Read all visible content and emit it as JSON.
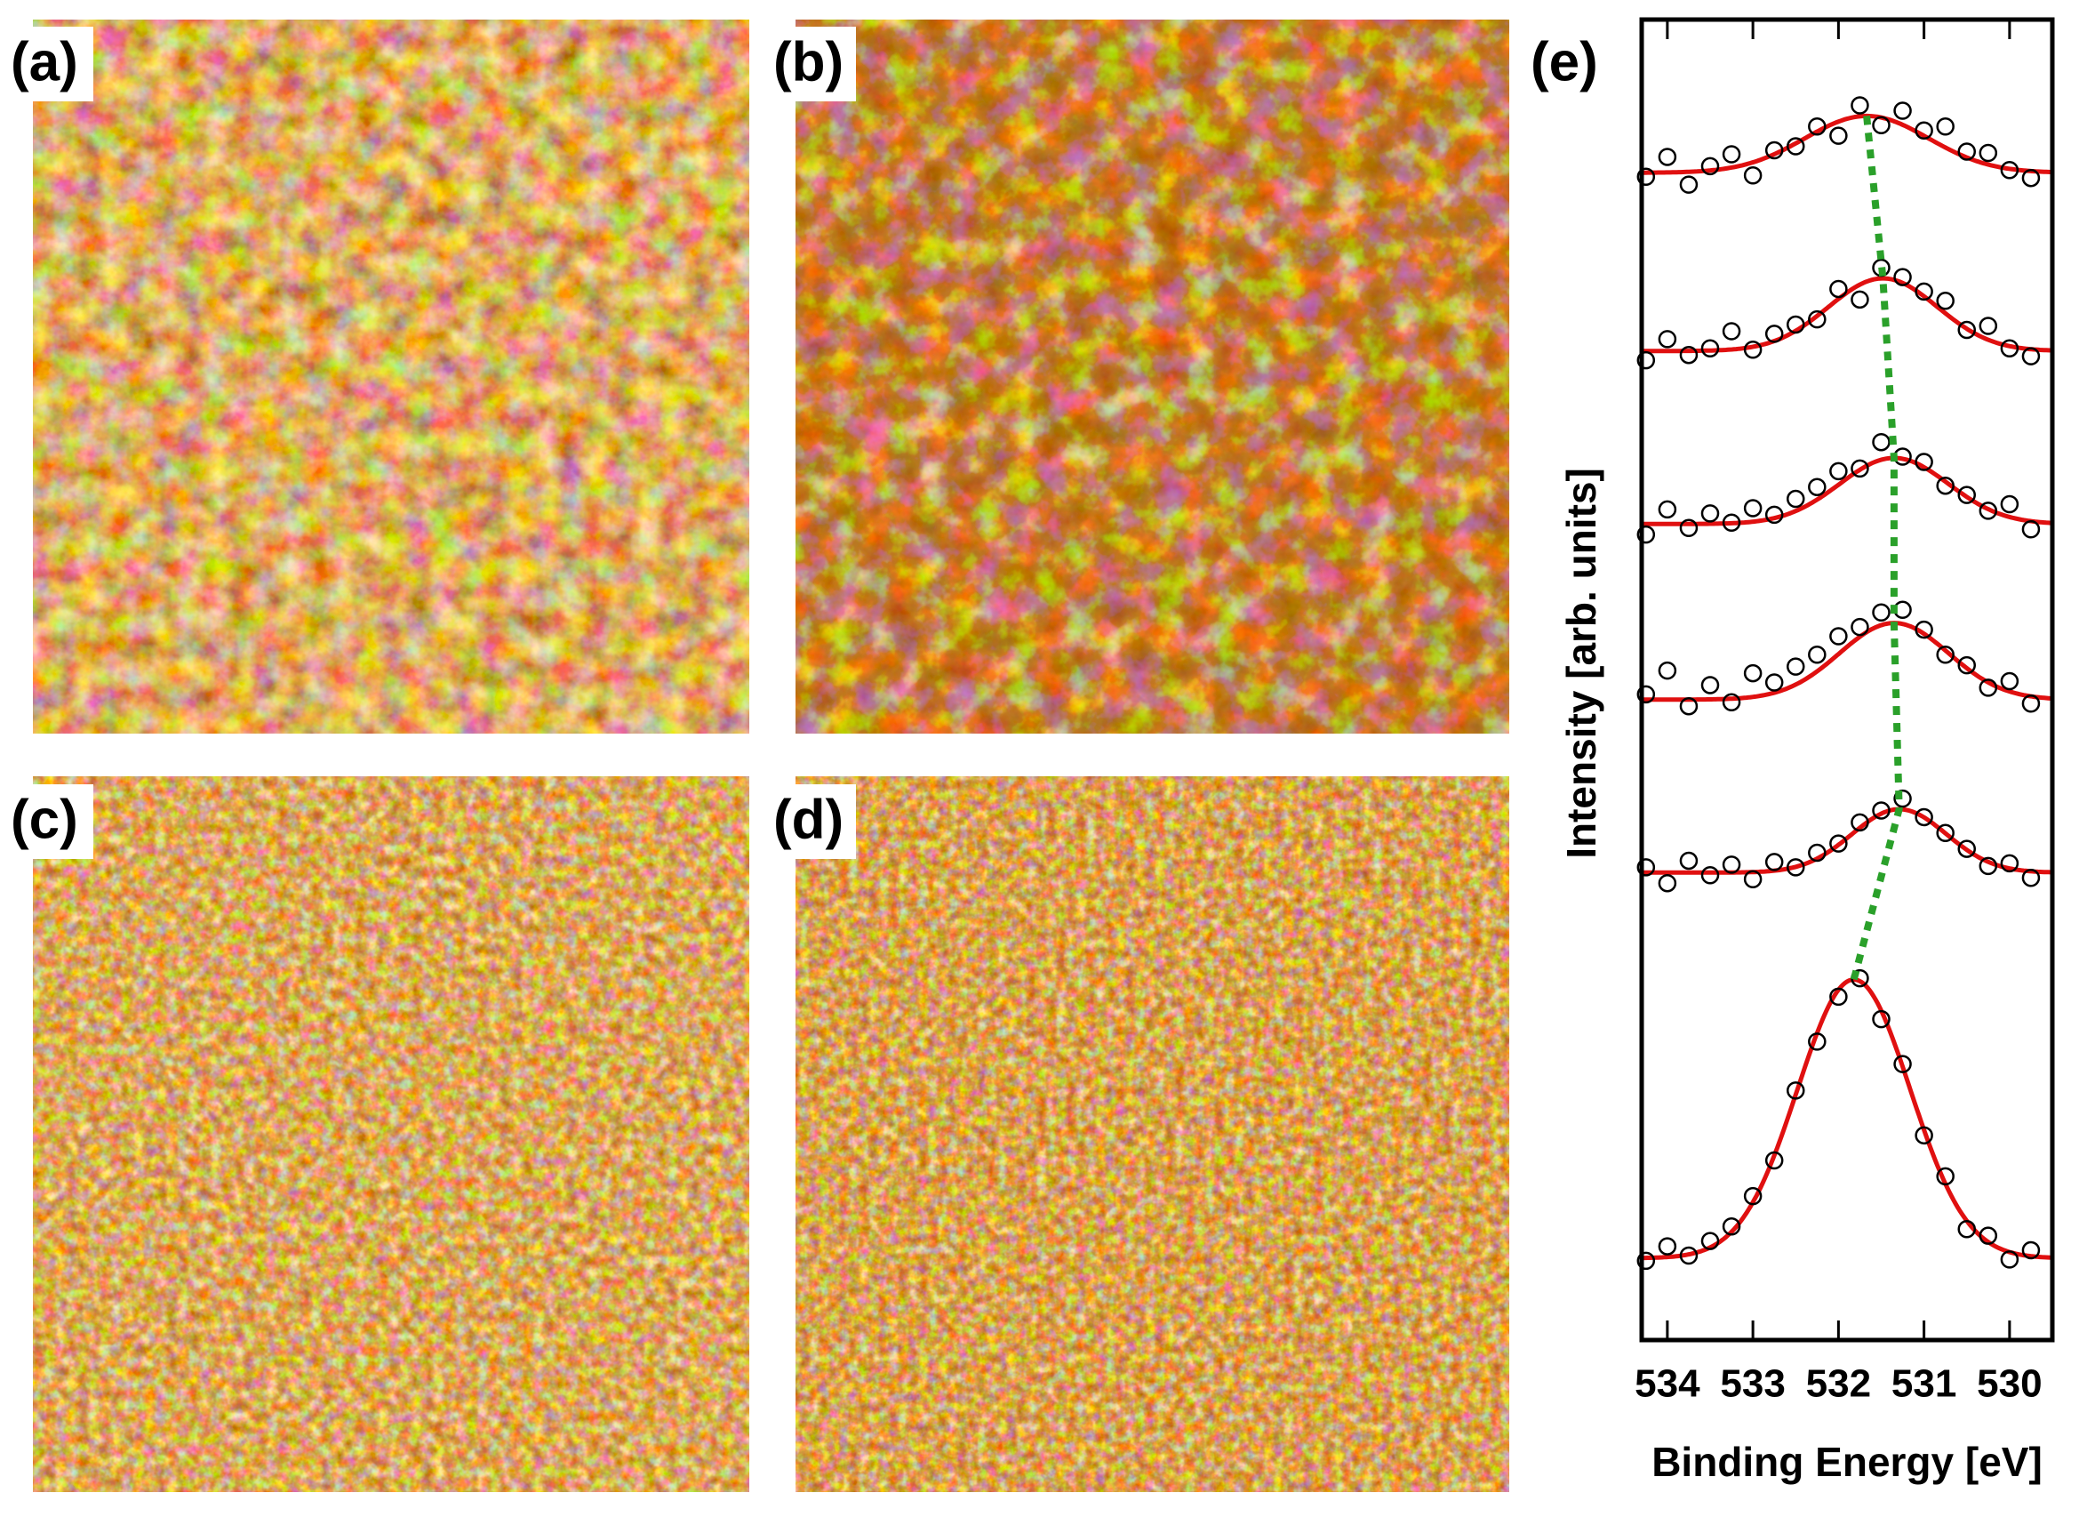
{
  "panels": [
    "(a)",
    "(b)",
    "(c)",
    "(d)"
  ],
  "chart_data": {
    "type": "scatter",
    "panel_label": "(e)",
    "x_label": "Binding Energy [eV]",
    "y_label": "Intensity [arb. units]",
    "xlim": [
      534.3,
      529.5
    ],
    "xticks": [
      534,
      533,
      532,
      531,
      530
    ],
    "ylim": [
      0,
      100
    ],
    "point_color": "#000000",
    "fit_color": "#e01010",
    "peak_line_color": "#2aa02a",
    "x": [
      534.25,
      534.0,
      533.75,
      533.5,
      533.25,
      533.0,
      532.75,
      532.5,
      532.25,
      532.0,
      531.75,
      531.5,
      531.25,
      531.0,
      530.75,
      530.5,
      530.25,
      530.0,
      529.75
    ],
    "series": [
      {
        "center": 531.67,
        "height": 4.3,
        "fwhm": 1.7,
        "baseline": 88.4,
        "values": [
          88.1,
          89.6,
          87.5,
          88.9,
          89.8,
          88.2,
          90.1,
          90.4,
          91.9,
          91.2,
          93.5,
          92.0,
          93.1,
          91.6,
          91.9,
          90.0,
          89.9,
          88.6,
          88.0
        ]
      },
      {
        "center": 531.48,
        "height": 5.5,
        "fwhm": 1.5,
        "baseline": 74.9,
        "values": [
          74.2,
          75.8,
          74.6,
          75.1,
          76.4,
          75.0,
          76.2,
          76.9,
          77.3,
          79.6,
          78.8,
          81.2,
          80.5,
          79.4,
          78.7,
          76.5,
          76.8,
          75.1,
          74.5
        ]
      },
      {
        "center": 531.35,
        "height": 5.0,
        "fwhm": 1.5,
        "baseline": 61.8,
        "values": [
          61.0,
          62.9,
          61.5,
          62.6,
          61.9,
          63.0,
          62.5,
          63.7,
          64.6,
          65.8,
          66.0,
          68.0,
          66.9,
          66.5,
          64.7,
          64.0,
          62.8,
          63.3,
          61.4
        ]
      },
      {
        "center": 531.35,
        "height": 5.8,
        "fwhm": 1.5,
        "baseline": 48.5,
        "values": [
          48.9,
          50.7,
          48.0,
          49.6,
          48.3,
          50.5,
          49.8,
          51.0,
          51.9,
          53.3,
          54.0,
          55.1,
          55.3,
          53.8,
          51.9,
          51.1,
          49.4,
          49.9,
          48.2
        ]
      },
      {
        "center": 531.29,
        "height": 4.8,
        "fwhm": 1.3,
        "baseline": 35.4,
        "values": [
          35.8,
          34.6,
          36.3,
          35.2,
          36.0,
          34.9,
          36.2,
          35.8,
          36.9,
          37.6,
          39.2,
          40.1,
          41.0,
          39.6,
          38.4,
          37.2,
          35.9,
          36.1,
          35.0
        ]
      },
      {
        "center": 531.82,
        "height": 21.1,
        "fwhm": 1.55,
        "baseline": 6.2,
        "values": [
          6.0,
          7.1,
          6.4,
          7.5,
          8.6,
          10.9,
          13.6,
          18.9,
          22.6,
          26.0,
          27.4,
          24.3,
          20.9,
          15.5,
          12.4,
          8.4,
          7.9,
          6.1,
          6.8
        ]
      }
    ]
  }
}
